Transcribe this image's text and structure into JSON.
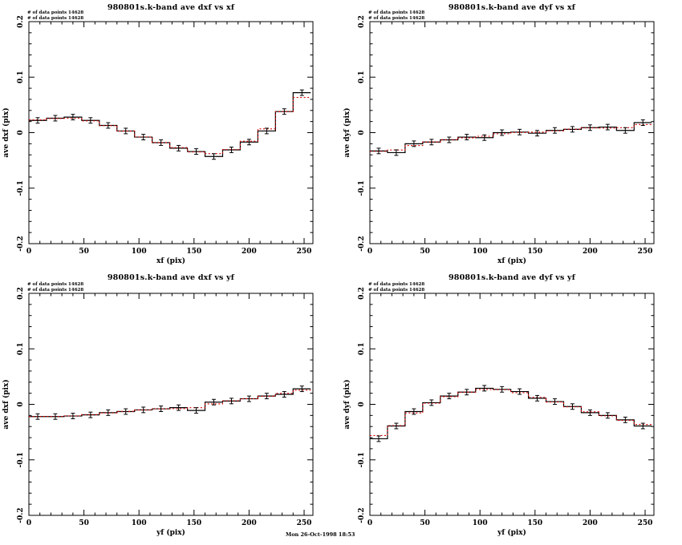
{
  "page": {
    "background": "#ffffff",
    "footer_timestamp": "Mon 26-Oct-1998 18:53",
    "frame_color": "#000000",
    "histogram_color": "#000000",
    "fit_line_color": "#dd0000"
  },
  "chart_data": [
    {
      "type": "line",
      "style": "step-histogram-with-errorbars-and-dotted-fit",
      "title": "980801s.k-band ave dxf vs xf",
      "xlabel": "xf (pix)",
      "ylabel": "ave dxf (pix)",
      "annotation_lines": [
        "# of data points 14628",
        "# of data points 14628"
      ],
      "xlim": [
        0,
        258
      ],
      "ylim": [
        -0.2,
        0.2
      ],
      "xticks": [
        0,
        50,
        100,
        150,
        200,
        250
      ],
      "xtick_labels": [
        "0",
        "50",
        "100",
        "150",
        "200",
        "250"
      ],
      "yticks": [
        0.2,
        0.1,
        0,
        -0.1,
        -0.2
      ],
      "ytick_labels": [
        "0.2",
        "0.1",
        "0",
        "-0.1",
        "-0.2"
      ],
      "x_minor_step": 10,
      "y_minor_step": 0.02,
      "bin_start": 0,
      "bin_width": 16,
      "bin_centers": [
        8,
        24,
        40,
        56,
        72,
        88,
        104,
        120,
        136,
        152,
        168,
        184,
        200,
        216,
        232,
        248
      ],
      "values": [
        0.022,
        0.026,
        0.028,
        0.022,
        0.013,
        0.003,
        -0.008,
        -0.018,
        -0.028,
        -0.034,
        -0.043,
        -0.031,
        -0.017,
        0.003,
        0.038,
        0.072
      ],
      "error_half_height": 0.005,
      "grid": false,
      "legend": null
    },
    {
      "type": "line",
      "style": "step-histogram-with-errorbars-and-dotted-fit",
      "title": "980801s.k-band ave dyf vs xf",
      "xlabel": "xf (pix)",
      "ylabel": "ave dyf (pix)",
      "annotation_lines": [
        "# of data points 14628",
        "# of data points 14628"
      ],
      "xlim": [
        0,
        258
      ],
      "ylim": [
        -0.2,
        0.2
      ],
      "xticks": [
        0,
        50,
        100,
        150,
        200,
        250
      ],
      "xtick_labels": [
        "0",
        "50",
        "100",
        "150",
        "200",
        "250"
      ],
      "yticks": [
        0.2,
        0.1,
        0,
        -0.1,
        -0.2
      ],
      "ytick_labels": [
        "0.2",
        "0.1",
        "0",
        "-0.1",
        "-0.2"
      ],
      "x_minor_step": 10,
      "y_minor_step": 0.02,
      "bin_start": 0,
      "bin_width": 16,
      "bin_centers": [
        8,
        24,
        40,
        56,
        72,
        88,
        104,
        120,
        136,
        152,
        168,
        184,
        200,
        216,
        232,
        248
      ],
      "values": [
        -0.033,
        -0.036,
        -0.02,
        -0.017,
        -0.013,
        -0.008,
        -0.009,
        0.0,
        0.001,
        -0.001,
        0.004,
        0.006,
        0.009,
        0.01,
        0.004,
        0.018
      ],
      "error_half_height": 0.005,
      "grid": false,
      "legend": null
    },
    {
      "type": "line",
      "style": "step-histogram-with-errorbars-and-dotted-fit",
      "title": "980801s.k-band ave dxf vs yf",
      "xlabel": "yf (pix)",
      "ylabel": "ave dxf (pix)",
      "annotation_lines": [
        "# of data points 14628",
        "# of data points 14628"
      ],
      "xlim": [
        0,
        258
      ],
      "ylim": [
        -0.2,
        0.2
      ],
      "xticks": [
        0,
        50,
        100,
        150,
        200,
        250
      ],
      "xtick_labels": [
        "0",
        "50",
        "100",
        "150",
        "200",
        "250"
      ],
      "yticks": [
        0.2,
        0.1,
        0,
        -0.1,
        -0.2
      ],
      "ytick_labels": [
        "0.2",
        "0.1",
        "0",
        "-0.1",
        "-0.2"
      ],
      "x_minor_step": 10,
      "y_minor_step": 0.02,
      "bin_start": 0,
      "bin_width": 16,
      "bin_centers": [
        8,
        24,
        40,
        56,
        72,
        88,
        104,
        120,
        136,
        152,
        168,
        184,
        200,
        216,
        232,
        248
      ],
      "values": [
        -0.022,
        -0.022,
        -0.021,
        -0.019,
        -0.015,
        -0.013,
        -0.01,
        -0.008,
        -0.006,
        -0.011,
        0.004,
        0.006,
        0.01,
        0.015,
        0.018,
        0.028
      ],
      "error_half_height": 0.005,
      "grid": false,
      "legend": null
    },
    {
      "type": "line",
      "style": "step-histogram-with-errorbars-and-dotted-fit",
      "title": "980801s.k-band ave dyf vs yf",
      "xlabel": "yf (pix)",
      "ylabel": "ave dyf (pix)",
      "annotation_lines": [
        "# of data points 14628",
        "# of data points 14628"
      ],
      "xlim": [
        0,
        258
      ],
      "ylim": [
        -0.2,
        0.2
      ],
      "xticks": [
        0,
        50,
        100,
        150,
        200,
        250
      ],
      "xtick_labels": [
        "0",
        "50",
        "100",
        "150",
        "200",
        "250"
      ],
      "yticks": [
        0.2,
        0.1,
        0,
        -0.1,
        -0.2
      ],
      "ytick_labels": [
        "0.2",
        "0.1",
        "0",
        "-0.1",
        "-0.2"
      ],
      "x_minor_step": 10,
      "y_minor_step": 0.02,
      "bin_start": 0,
      "bin_width": 16,
      "bin_centers": [
        8,
        24,
        40,
        56,
        72,
        88,
        104,
        120,
        136,
        152,
        168,
        184,
        200,
        216,
        232,
        248
      ],
      "values": [
        -0.062,
        -0.039,
        -0.013,
        0.003,
        0.015,
        0.022,
        0.029,
        0.027,
        0.023,
        0.011,
        0.005,
        -0.004,
        -0.015,
        -0.02,
        -0.028,
        -0.039
      ],
      "error_half_height": 0.005,
      "grid": false,
      "legend": null
    }
  ]
}
